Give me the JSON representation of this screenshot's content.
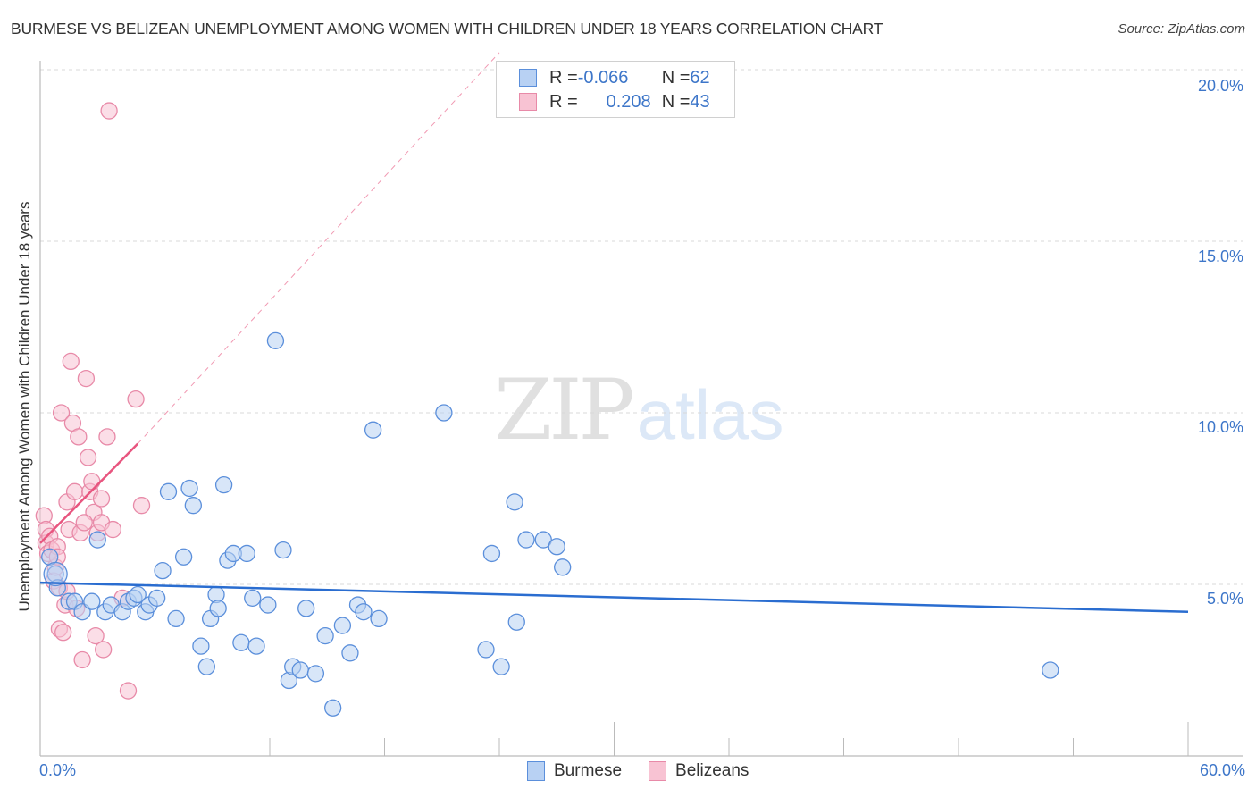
{
  "header": {
    "title": "BURMESE VS BELIZEAN UNEMPLOYMENT AMONG WOMEN WITH CHILDREN UNDER 18 YEARS CORRELATION CHART",
    "source": "Source: ZipAtlas.com"
  },
  "axes": {
    "ylabel": "Unemployment Among Women with Children Under 18 years",
    "yticks": [
      "20.0%",
      "15.0%",
      "10.0%",
      "5.0%"
    ],
    "xticks": [
      "0.0%",
      "60.0%"
    ]
  },
  "legend": {
    "rows": [
      {
        "r_label": "R = ",
        "r_value": "-0.066",
        "n_label": "N = ",
        "n_value": "62"
      },
      {
        "r_label": "R = ",
        "r_value": "0.208",
        "n_label": "N = ",
        "n_value": "43"
      }
    ],
    "series": [
      "Burmese",
      "Belizeans"
    ]
  },
  "watermark": {
    "zip": "ZIP",
    "atlas": "atlas"
  },
  "colors": {
    "burmese_fill": "#b8d1f3",
    "burmese_stroke": "#5b8fdb",
    "burmese_line": "#2a6dd0",
    "belizean_fill": "#f8c3d3",
    "belizean_stroke": "#e88aa8",
    "belizean_line": "#e8557f",
    "tick_text": "#3d76c9"
  },
  "chart_data": {
    "type": "scatter",
    "title": "BURMESE VS BELIZEAN UNEMPLOYMENT AMONG WOMEN WITH CHILDREN UNDER 18 YEARS CORRELATION CHART",
    "xlabel": "",
    "ylabel": "Unemployment Among Women with Children Under 18 years",
    "xlim": [
      0,
      60
    ],
    "ylim": [
      0,
      20.5
    ],
    "x_ticks": [
      "0.0%",
      "60.0%"
    ],
    "y_ticks": [
      "5.0%",
      "10.0%",
      "15.0%",
      "20.0%"
    ],
    "grid": "horizontal dashed",
    "legend_position": "top-center (stats) and bottom-center (series)",
    "series": [
      {
        "name": "Burmese",
        "R": -0.066,
        "N": 62,
        "trend": {
          "x": [
            0,
            60
          ],
          "y": [
            5.05,
            4.2
          ]
        },
        "points": [
          [
            0.5,
            5.8
          ],
          [
            0.8,
            5.3
          ],
          [
            0.9,
            4.9
          ],
          [
            1.5,
            4.5
          ],
          [
            1.8,
            4.5
          ],
          [
            2.2,
            4.2
          ],
          [
            2.7,
            4.5
          ],
          [
            3.0,
            6.3
          ],
          [
            3.4,
            4.2
          ],
          [
            3.7,
            4.4
          ],
          [
            4.3,
            4.2
          ],
          [
            4.6,
            4.5
          ],
          [
            4.9,
            4.6
          ],
          [
            5.1,
            4.7
          ],
          [
            5.5,
            4.2
          ],
          [
            5.7,
            4.4
          ],
          [
            6.1,
            4.6
          ],
          [
            6.4,
            5.4
          ],
          [
            6.7,
            7.7
          ],
          [
            7.1,
            4.0
          ],
          [
            7.5,
            5.8
          ],
          [
            7.8,
            7.8
          ],
          [
            8.0,
            7.3
          ],
          [
            8.4,
            3.2
          ],
          [
            8.7,
            2.6
          ],
          [
            8.9,
            4.0
          ],
          [
            9.2,
            4.7
          ],
          [
            9.6,
            7.9
          ],
          [
            9.8,
            5.7
          ],
          [
            10.1,
            5.9
          ],
          [
            10.5,
            3.3
          ],
          [
            10.8,
            5.9
          ],
          [
            11.1,
            4.6
          ],
          [
            11.3,
            3.2
          ],
          [
            11.9,
            4.4
          ],
          [
            12.3,
            12.1
          ],
          [
            12.7,
            6.0
          ],
          [
            13.0,
            2.2
          ],
          [
            13.2,
            2.6
          ],
          [
            13.6,
            2.5
          ],
          [
            13.9,
            4.3
          ],
          [
            14.4,
            2.4
          ],
          [
            14.9,
            3.5
          ],
          [
            15.3,
            1.4
          ],
          [
            15.8,
            3.8
          ],
          [
            16.2,
            3.0
          ],
          [
            16.6,
            4.4
          ],
          [
            16.9,
            4.2
          ],
          [
            17.4,
            9.5
          ],
          [
            17.7,
            4.0
          ],
          [
            21.1,
            10.0
          ],
          [
            23.3,
            3.1
          ],
          [
            23.6,
            5.9
          ],
          [
            24.1,
            2.6
          ],
          [
            24.8,
            7.4
          ],
          [
            24.9,
            3.9
          ],
          [
            25.4,
            6.3
          ],
          [
            26.3,
            6.3
          ],
          [
            27.0,
            6.1
          ],
          [
            27.3,
            5.5
          ],
          [
            52.8,
            2.5
          ],
          [
            9.3,
            4.3
          ]
        ]
      },
      {
        "name": "Belizeans",
        "R": 0.208,
        "N": 43,
        "trend": {
          "x": [
            0,
            5.1
          ],
          "y": [
            6.2,
            9.1
          ],
          "dashed_extension_to": [
            24.0,
            20.5
          ]
        },
        "points": [
          [
            0.2,
            7.0
          ],
          [
            0.3,
            6.6
          ],
          [
            0.3,
            6.2
          ],
          [
            0.4,
            5.9
          ],
          [
            0.5,
            6.4
          ],
          [
            0.6,
            6.0
          ],
          [
            0.7,
            5.1
          ],
          [
            0.8,
            5.5
          ],
          [
            0.9,
            6.1
          ],
          [
            1.0,
            3.7
          ],
          [
            1.0,
            4.9
          ],
          [
            1.1,
            10.0
          ],
          [
            1.2,
            3.6
          ],
          [
            1.3,
            4.4
          ],
          [
            1.4,
            7.4
          ],
          [
            1.5,
            6.6
          ],
          [
            1.6,
            11.5
          ],
          [
            1.7,
            9.7
          ],
          [
            1.8,
            7.7
          ],
          [
            1.9,
            4.3
          ],
          [
            2.0,
            9.3
          ],
          [
            2.1,
            6.5
          ],
          [
            2.2,
            2.8
          ],
          [
            2.4,
            11.0
          ],
          [
            2.5,
            8.7
          ],
          [
            2.6,
            7.7
          ],
          [
            2.7,
            8.0
          ],
          [
            2.8,
            7.1
          ],
          [
            2.9,
            3.5
          ],
          [
            3.0,
            6.5
          ],
          [
            3.2,
            7.5
          ],
          [
            3.3,
            3.1
          ],
          [
            3.5,
            9.3
          ],
          [
            3.6,
            18.8
          ],
          [
            3.2,
            6.8
          ],
          [
            3.8,
            6.6
          ],
          [
            4.3,
            4.6
          ],
          [
            4.6,
            1.9
          ],
          [
            5.0,
            10.4
          ],
          [
            5.3,
            7.3
          ],
          [
            0.9,
            5.8
          ],
          [
            1.4,
            4.8
          ],
          [
            2.3,
            6.8
          ]
        ]
      }
    ]
  }
}
